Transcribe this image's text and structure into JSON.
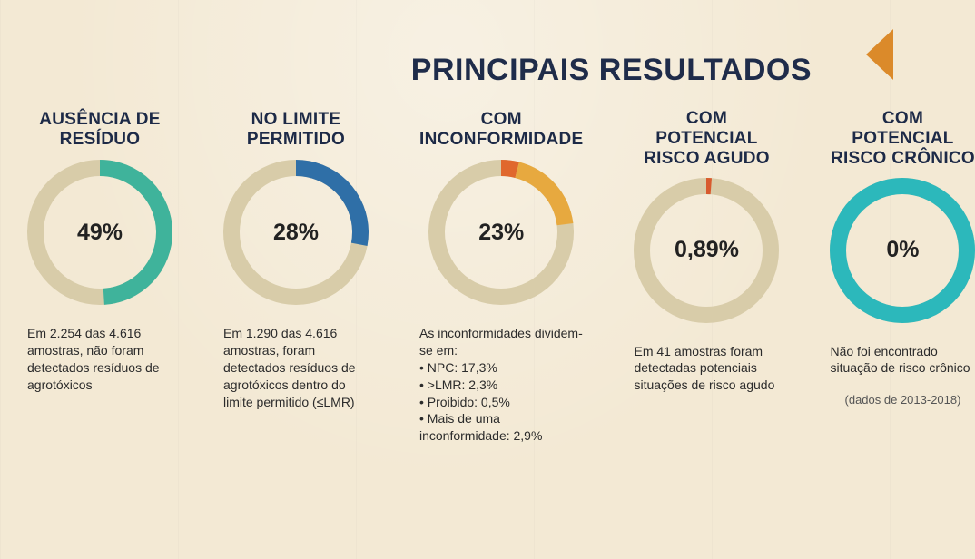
{
  "title": "PRINCIPAIS RESULTADOS",
  "background_color": "#f3e9d4",
  "accent_color": "#db8a2a",
  "title_color": "#1f2c4a",
  "title_fontsize": 34,
  "donut": {
    "size": 160,
    "ring_thickness": 18,
    "track_color": "#d8cca9",
    "center_fontsize": 25
  },
  "panels": [
    {
      "title": "AUSÊNCIA DE\nRESÍDUO",
      "percent_value": 49,
      "percent_label": "49%",
      "ring_color": "#3fb39b",
      "desc": "Em 2.254 das 4.616 amostras, não foram detectados resíduos de agrotóxicos",
      "note": null
    },
    {
      "title": "NO LIMITE\nPERMITIDO",
      "percent_value": 28,
      "percent_label": "28%",
      "ring_color": "#2f6fa7",
      "desc": "Em 1.290 das 4.616 amostras, foram detectados resíduos de agrotóxicos dentro do limite permitido (≤LMR)",
      "note": null
    },
    {
      "title": "COM\nINCONFORMIDADE",
      "percent_value": 23,
      "percent_label": "23%",
      "ring_color": "#e7a93f",
      "secondary_ring_color": "#e0682d",
      "secondary_percent": 4,
      "desc": "As inconformidades dividem-se em:",
      "bullets": [
        "• NPC: 17,3%",
        "• >LMR: 2,3%",
        "• Proibido: 0,5%",
        "• Mais de uma inconformidade: 2,9%"
      ],
      "note": null
    },
    {
      "title": "COM POTENCIAL\nRISCO AGUDO",
      "percent_value": 0.89,
      "percent_label": "0,89%",
      "ring_color": "#e7a93f",
      "tick_color": "#d85a2e",
      "desc": "Em 41 amostras foram detectadas potenciais situações de risco agudo",
      "note": null
    },
    {
      "title": "COM POTENCIAL\nRISCO CRÔNICO",
      "percent_value": 0,
      "percent_label": "0%",
      "ring_color": "#2cb8bb",
      "full_ring": true,
      "desc": "Não foi encontrado situação de risco crônico",
      "note": "(dados de 2013-2018)"
    }
  ]
}
